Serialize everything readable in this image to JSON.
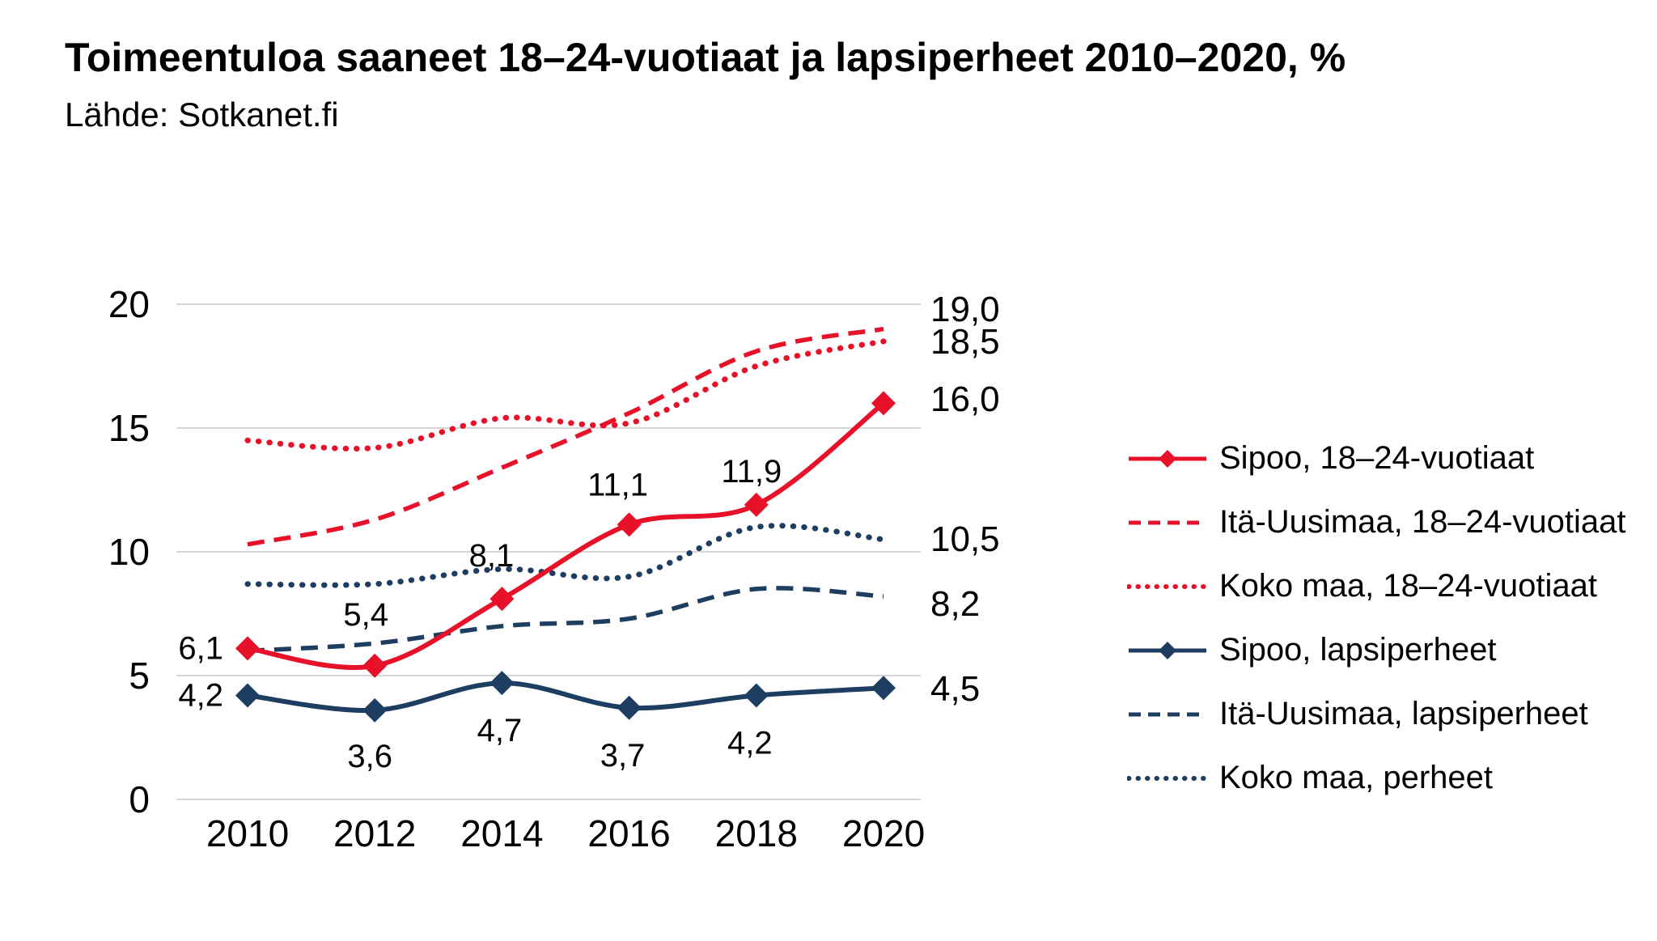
{
  "header": {
    "title": "Toimeentuloa saaneet 18–24-vuotiaat ja lapsiperheet  2010–2020, %",
    "source": "Lähde: Sotkanet.fi"
  },
  "colors": {
    "red": "#e8112a",
    "navy": "#1d3d61",
    "gridline": "#d6d6d6",
    "text": "#000000"
  },
  "chart_data": {
    "type": "line",
    "x": [
      2010,
      2012,
      2014,
      2016,
      2018,
      2020
    ],
    "x_tick_labels": [
      "2010",
      "2012",
      "2014",
      "2016",
      "2018",
      "2020"
    ],
    "ylim": [
      0,
      20
    ],
    "yticks": [
      "0",
      "5",
      "10",
      "15",
      "20"
    ],
    "grid": true,
    "legend_position": "right",
    "series": [
      {
        "name": "Sipoo, 18–24-vuotiaat",
        "color": "red",
        "style": "solid",
        "marker": "diamond",
        "values": [
          6.1,
          5.4,
          8.1,
          11.1,
          11.9,
          16.0
        ],
        "point_labels": [
          "6,1",
          "5,4",
          "8,1",
          "11,1",
          "11,9",
          null
        ],
        "end_label": "16,0"
      },
      {
        "name": "Itä-Uusimaa, 18–24-vuotiaat",
        "color": "red",
        "style": "dashed",
        "marker": "none",
        "values": [
          10.3,
          11.3,
          13.4,
          15.6,
          18.1,
          19.0
        ],
        "point_labels": null,
        "end_label": "19,0"
      },
      {
        "name": "Koko maa, 18–24-vuotiaat",
        "color": "red",
        "style": "dotted",
        "marker": "none",
        "values": [
          14.5,
          14.2,
          15.4,
          15.2,
          17.5,
          18.5
        ],
        "point_labels": null,
        "end_label": "18,5"
      },
      {
        "name": "Sipoo, lapsiperheet",
        "color": "navy",
        "style": "solid",
        "marker": "diamond",
        "values": [
          4.2,
          3.6,
          4.7,
          3.7,
          4.2,
          4.5
        ],
        "point_labels": [
          "4,2",
          "3,6",
          "4,7",
          "3,7",
          "4,2",
          null
        ],
        "end_label": "4,5"
      },
      {
        "name": "Itä-Uusimaa, lapsiperheet",
        "color": "navy",
        "style": "dashed",
        "marker": "none",
        "values": [
          6.0,
          6.3,
          7.0,
          7.3,
          8.5,
          8.2
        ],
        "point_labels": null,
        "end_label": "8,2"
      },
      {
        "name": "Koko maa, perheet",
        "color": "navy",
        "style": "dotted",
        "marker": "none",
        "values": [
          8.7,
          8.7,
          9.3,
          9.0,
          11.0,
          10.5
        ],
        "point_labels": null,
        "end_label": "10,5"
      }
    ]
  }
}
